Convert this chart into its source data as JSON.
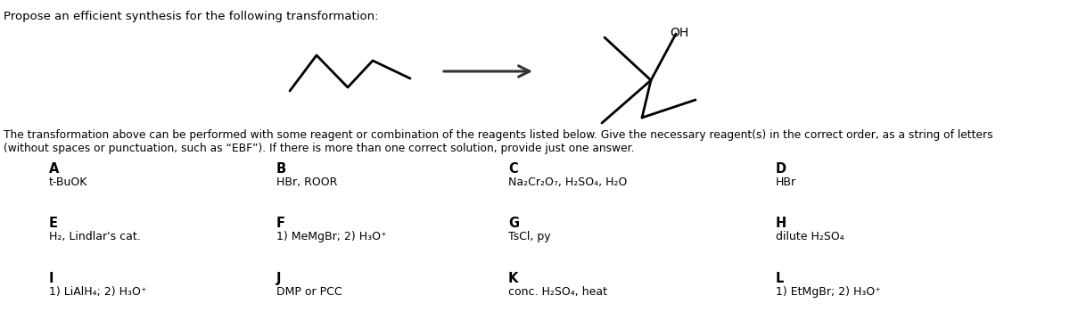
{
  "title_text": "Propose an efficient synthesis for the following transformation:",
  "body_line1": "The transformation above can be performed with some reagent or combination of the reagents listed below. Give the necessary reagent(s) in the correct order, as a string of letters",
  "body_line2": "(without spaces or punctuation, such as “EBF”). If there is more than one correct solution, provide just one answer.",
  "reagents": [
    {
      "label": "A",
      "name": "t-BuOK",
      "col": 0,
      "row": 0
    },
    {
      "label": "B",
      "name": "HBr, ROOR",
      "col": 1,
      "row": 0
    },
    {
      "label": "C",
      "name": "Na₂Cr₂O₇, H₂SO₄, H₂O",
      "col": 2,
      "row": 0
    },
    {
      "label": "D",
      "name": "HBr",
      "col": 3,
      "row": 0
    },
    {
      "label": "E",
      "name": "H₂, Lindlar's cat.",
      "col": 0,
      "row": 1
    },
    {
      "label": "F",
      "name": "1) MeMgBr; 2) H₃O⁺",
      "col": 1,
      "row": 1
    },
    {
      "label": "G",
      "name": "TsCl, py",
      "col": 2,
      "row": 1
    },
    {
      "label": "H",
      "name": "dilute H₂SO₄",
      "col": 3,
      "row": 1
    },
    {
      "label": "I",
      "name": "1) LiAlH₄; 2) H₃O⁺",
      "col": 0,
      "row": 2
    },
    {
      "label": "J",
      "name": "DMP or PCC",
      "col": 1,
      "row": 2
    },
    {
      "label": "K",
      "name": "conc. H₂SO₄, heat",
      "col": 2,
      "row": 2
    },
    {
      "label": "L",
      "name": "1) EtMgBr; 2) H₃O⁺",
      "col": 3,
      "row": 2
    }
  ],
  "background_color": "#ffffff",
  "text_color": "#000000",
  "font_size_title": 9.5,
  "font_size_body": 8.8,
  "font_size_label": 10.5,
  "font_size_reagent": 9.0
}
